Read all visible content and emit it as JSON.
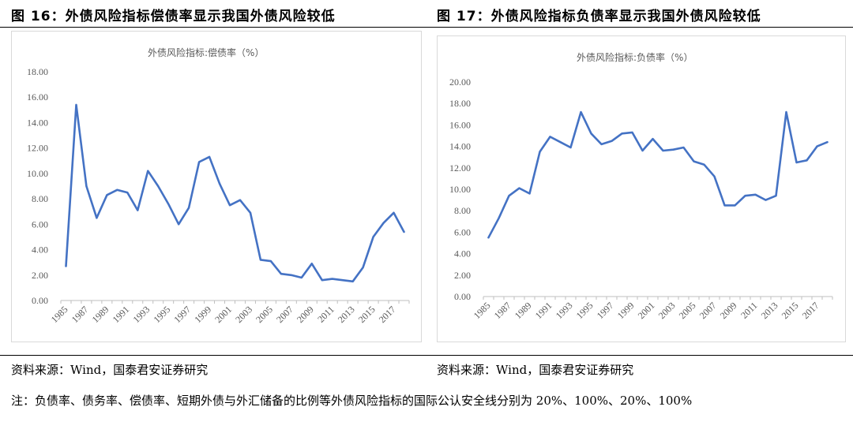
{
  "figures": [
    {
      "title": "图 16：外债风险指标偿债率显示我国外债风险较低",
      "source": "资料来源：Wind，国泰君安证券研究"
    },
    {
      "title": "图 17：外债风险指标负债率显示我国外债风险较低",
      "source": "资料来源：Wind，国泰君安证券研究"
    }
  ],
  "note": "注：负债率、债务率、偿债率、短期外债与外汇储备的比例等外债风险指标的国际公认安全线分别为 20%、100%、20%、100%",
  "chart_data": [
    {
      "type": "line",
      "title": "外债风险指标:偿债率（%）",
      "x": [
        1985,
        1986,
        1987,
        1988,
        1989,
        1990,
        1991,
        1992,
        1993,
        1994,
        1995,
        1996,
        1997,
        1998,
        1999,
        2000,
        2001,
        2002,
        2003,
        2004,
        2005,
        2006,
        2007,
        2008,
        2009,
        2010,
        2011,
        2012,
        2013,
        2014,
        2015,
        2016,
        2017,
        2018
      ],
      "x_tick_labels": [
        "1985",
        "1987",
        "1989",
        "1991",
        "1993",
        "1995",
        "1997",
        "1999",
        "2001",
        "2003",
        "2005",
        "2007",
        "2009",
        "2011",
        "2013",
        "2015",
        "2017"
      ],
      "y_tick_labels": [
        "0.00",
        "2.00",
        "4.00",
        "6.00",
        "8.00",
        "10.00",
        "12.00",
        "14.00",
        "16.00",
        "18.00"
      ],
      "ylim": [
        0,
        18
      ],
      "grid": false,
      "series": [
        {
          "values": [
            2.7,
            15.4,
            9.0,
            6.5,
            8.3,
            8.7,
            8.5,
            7.1,
            10.2,
            9.0,
            7.6,
            6.0,
            7.3,
            10.9,
            11.3,
            9.2,
            7.5,
            7.9,
            6.9,
            3.2,
            3.1,
            2.1,
            2.0,
            1.8,
            2.9,
            1.6,
            1.7,
            1.6,
            1.5,
            2.6,
            5.0,
            6.1,
            6.9,
            5.4
          ],
          "color": "#4472c4"
        }
      ]
    },
    {
      "type": "line",
      "title": "外债风险指标:负债率（%）",
      "x": [
        1985,
        1986,
        1987,
        1988,
        1989,
        1990,
        1991,
        1992,
        1993,
        1994,
        1995,
        1996,
        1997,
        1998,
        1999,
        2000,
        2001,
        2002,
        2003,
        2004,
        2005,
        2006,
        2007,
        2008,
        2009,
        2010,
        2011,
        2012,
        2013,
        2014,
        2015,
        2016,
        2017,
        2018
      ],
      "x_tick_labels": [
        "1985",
        "1987",
        "1989",
        "1991",
        "1993",
        "1995",
        "1997",
        "1999",
        "2001",
        "2003",
        "2005",
        "2007",
        "2009",
        "2011",
        "2013",
        "2015",
        "2017"
      ],
      "y_tick_labels": [
        "0.00",
        "2.00",
        "4.00",
        "6.00",
        "8.00",
        "10.00",
        "12.00",
        "14.00",
        "16.00",
        "18.00",
        "20.00"
      ],
      "ylim": [
        0,
        20
      ],
      "grid": false,
      "series": [
        {
          "values": [
            5.5,
            7.3,
            9.4,
            10.1,
            9.6,
            13.5,
            14.9,
            14.4,
            13.9,
            17.2,
            15.2,
            14.2,
            14.5,
            15.2,
            15.3,
            13.6,
            14.7,
            13.6,
            13.7,
            13.9,
            12.6,
            12.3,
            11.2,
            8.5,
            8.5,
            9.4,
            9.5,
            9.0,
            9.4,
            17.2,
            12.5,
            12.7,
            14.0,
            14.4
          ],
          "color": "#4472c4"
        }
      ]
    }
  ]
}
